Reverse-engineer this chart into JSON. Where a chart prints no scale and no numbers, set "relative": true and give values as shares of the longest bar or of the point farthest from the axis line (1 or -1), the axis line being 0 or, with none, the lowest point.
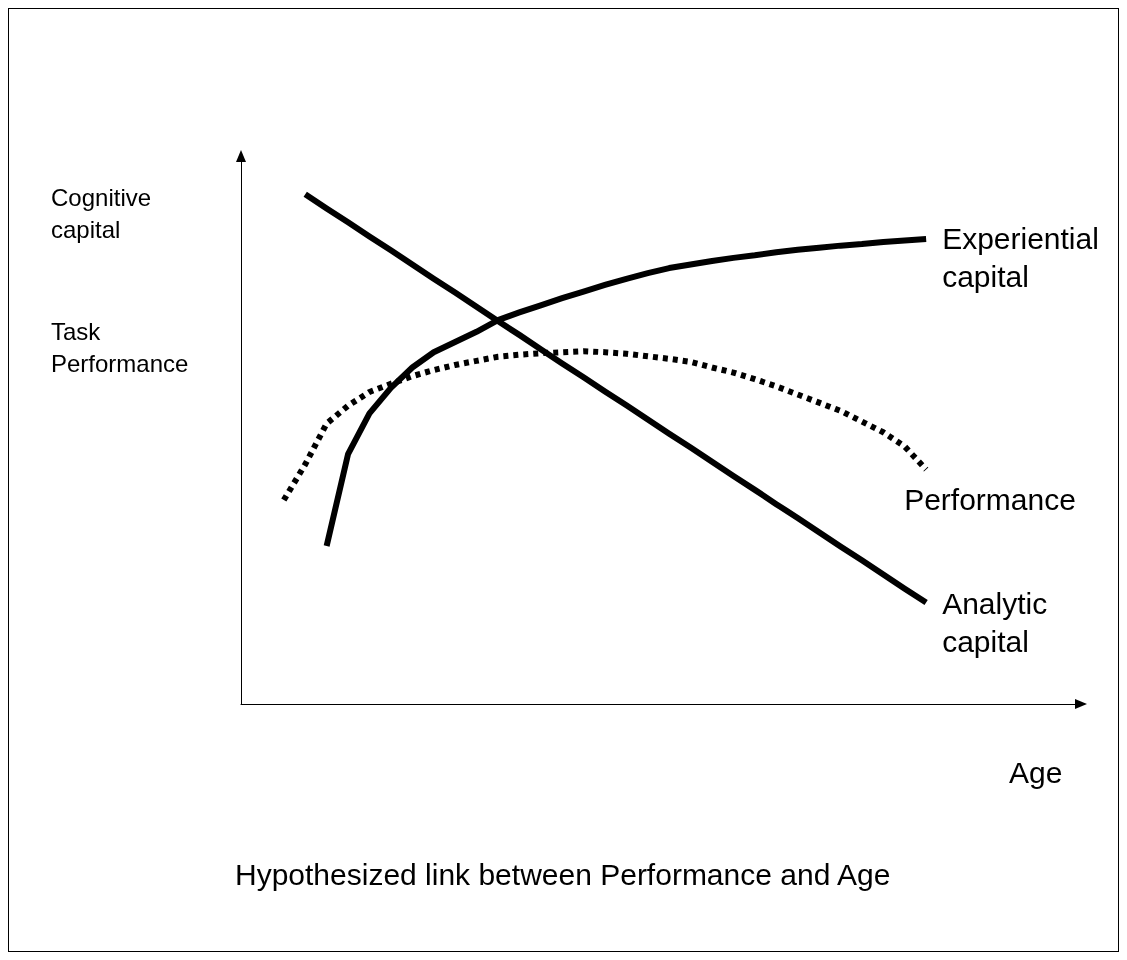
{
  "chart_data": {
    "type": "line",
    "title": "Hypothesized link between Performance and Age",
    "xlabel": "Age",
    "ylabel": "Cognitive capital",
    "annotations": [
      "Task Performance"
    ],
    "relative": true,
    "grid": false,
    "legend": false,
    "marker": "none",
    "categories": [
      null,
      null,
      null,
      null,
      null,
      null,
      null,
      null,
      null,
      null,
      null,
      null,
      null,
      null,
      null,
      null,
      null,
      null,
      null,
      null,
      null,
      null,
      null,
      null,
      null,
      null,
      null,
      null,
      null,
      null,
      null,
      null,
      null,
      null,
      null,
      null,
      null,
      null,
      null,
      null
    ],
    "series": [
      {
        "name": "Experiential capital",
        "color": "#000000",
        "line_style": "solid",
        "values": [
          null,
          null,
          null,
          null,
          0.31,
          0.49,
          0.57,
          0.62,
          0.66,
          0.69,
          0.71,
          0.73,
          0.753,
          0.768,
          0.782,
          0.796,
          0.809,
          0.822,
          0.834,
          0.845,
          0.855,
          0.862,
          0.869,
          0.875,
          0.88,
          0.886,
          0.891,
          0.895,
          0.899,
          0.902,
          0.906,
          0.909,
          0.912,
          null,
          null,
          null,
          null,
          null,
          null,
          null
        ]
      },
      {
        "name": "Performance",
        "color": "#000000",
        "line_style": "dotted",
        "values": [
          null,
          null,
          0.4,
          0.47,
          0.55,
          0.585,
          0.612,
          0.628,
          0.643,
          0.655,
          0.665,
          0.673,
          0.681,
          0.685,
          0.688,
          0.69,
          0.692,
          0.69,
          0.687,
          0.682,
          0.677,
          0.671,
          0.66,
          0.65,
          0.637,
          0.623,
          0.607,
          0.591,
          0.575,
          0.554,
          0.533,
          0.505,
          0.46,
          null,
          null,
          null,
          null,
          null,
          null,
          null
        ]
      },
      {
        "name": "Analytic capital",
        "color": "#000000",
        "line_style": "solid",
        "values": [
          null,
          null,
          null,
          1,
          0.972,
          0.945,
          0.917,
          0.89,
          0.862,
          0.834,
          0.807,
          0.779,
          0.751,
          0.724,
          0.696,
          0.668,
          0.641,
          0.613,
          0.586,
          0.558,
          0.53,
          0.503,
          0.475,
          0.447,
          0.42,
          0.392,
          0.365,
          0.337,
          0.309,
          0.282,
          0.254,
          0.226,
          0.199,
          null,
          null,
          null,
          null,
          null,
          null,
          null
        ]
      }
    ]
  }
}
